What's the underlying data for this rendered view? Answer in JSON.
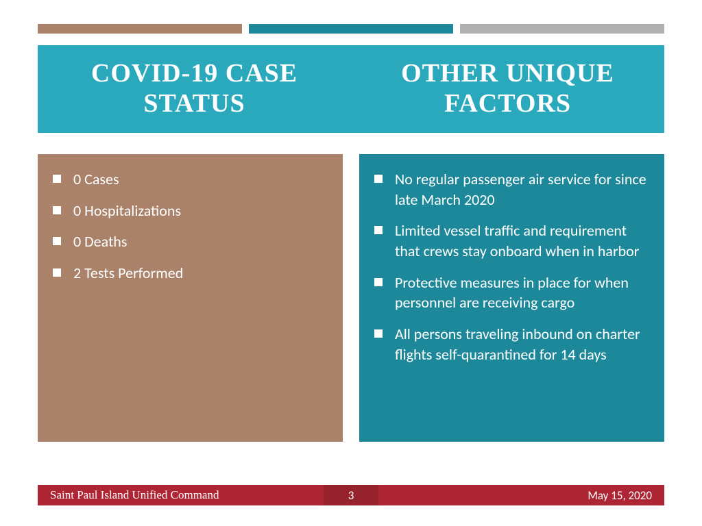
{
  "colors": {
    "accent_brown": "#a98269",
    "accent_teal": "#1d889a",
    "accent_gray": "#b0b0b0",
    "header_teal": "#2aa9bd",
    "panel_brown": "#a98269",
    "panel_teal": "#1d889a",
    "footer_red": "#ae2634",
    "footer_center": "#96222e",
    "white": "#ffffff"
  },
  "header": {
    "left_title": "COVID-19 CASE STATUS",
    "right_title": "OTHER UNIQUE FACTORS"
  },
  "left_panel": {
    "items": [
      "0 Cases",
      "0 Hospitalizations",
      "0 Deaths",
      "2 Tests Performed"
    ]
  },
  "right_panel": {
    "items": [
      "No regular passenger air service for since late March 2020",
      "Limited vessel traffic and requirement that crews stay onboard when in harbor",
      "Protective measures in place for when personnel are receiving cargo",
      "All persons traveling inbound on charter flights self-quarantined for 14 days"
    ]
  },
  "footer": {
    "left": "Saint Paul Island Unified Command",
    "page": "3",
    "right": "May 15, 2020"
  }
}
